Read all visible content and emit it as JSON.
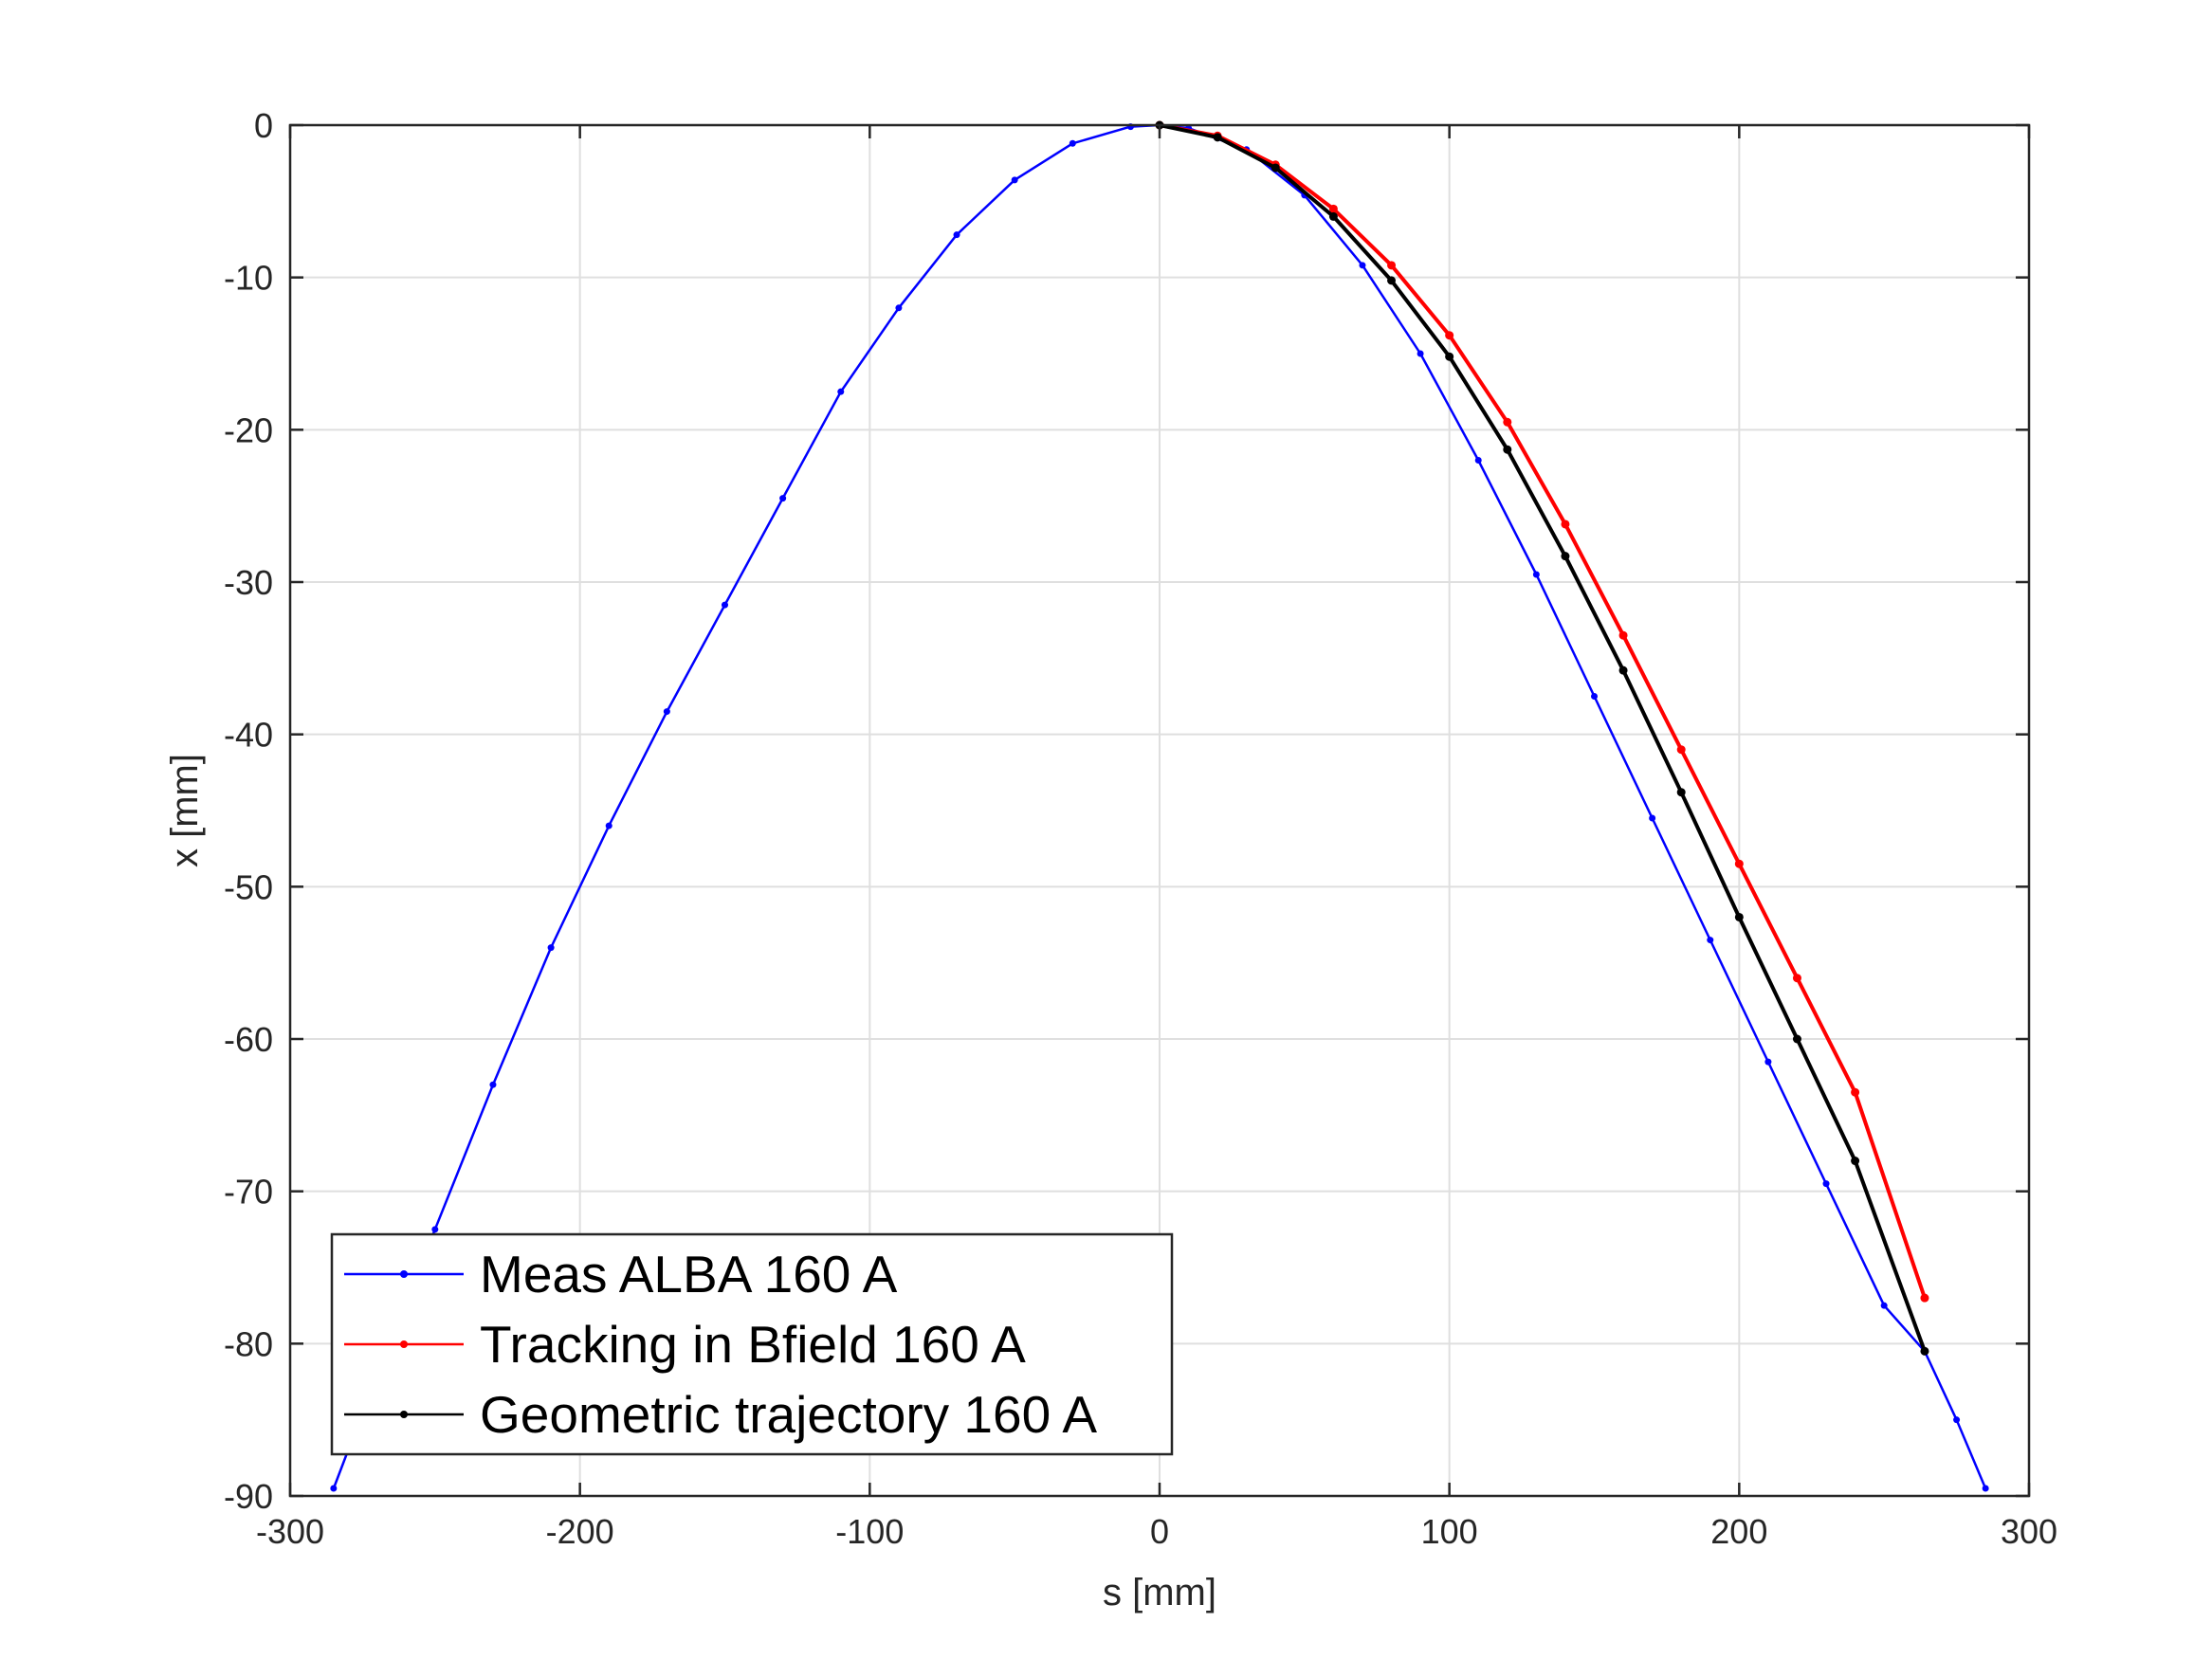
{
  "chart_data": {
    "type": "line",
    "title": "",
    "xlabel": "s [mm]",
    "ylabel": "x [mm]",
    "xlim": [
      -300,
      300
    ],
    "ylim": [
      -90,
      0
    ],
    "xticks": [
      -300,
      -200,
      -100,
      0,
      100,
      200,
      300
    ],
    "yticks": [
      -90,
      -80,
      -70,
      -60,
      -50,
      -40,
      -30,
      -20,
      -10,
      0
    ],
    "grid": true,
    "legend_position": "bottom-left",
    "series": [
      {
        "name": "Meas ALBA 160 A",
        "color": "#0000ff",
        "marker": "dot",
        "x": [
          -285,
          -270,
          -250,
          -230,
          -210,
          -190,
          -170,
          -150,
          -130,
          -110,
          -90,
          -70,
          -50,
          -30,
          -10,
          0,
          10,
          30,
          50,
          70,
          90,
          110,
          130,
          150,
          170,
          190,
          210,
          230,
          250,
          264,
          275,
          285
        ],
        "y": [
          -89.5,
          -82.0,
          -72.5,
          -63.0,
          -54.0,
          -46.0,
          -38.5,
          -31.5,
          -24.5,
          -17.5,
          -12.0,
          -7.2,
          -3.6,
          -1.2,
          -0.1,
          0.0,
          -0.2,
          -1.6,
          -4.6,
          -9.2,
          -15.0,
          -22.0,
          -29.5,
          -37.5,
          -45.5,
          -53.5,
          -61.5,
          -69.5,
          -77.5,
          -80.5,
          -85.0,
          -89.5
        ]
      },
      {
        "name": "Tracking in Bfield 160 A",
        "color": "#ff0000",
        "marker": "dot",
        "x": [
          0,
          20,
          40,
          60,
          80,
          100,
          120,
          140,
          160,
          180,
          200,
          220,
          240,
          264
        ],
        "y": [
          0.0,
          -0.7,
          -2.6,
          -5.5,
          -9.2,
          -13.8,
          -19.5,
          -26.2,
          -33.5,
          -41.0,
          -48.5,
          -56.0,
          -63.5,
          -77.0
        ]
      },
      {
        "name": "Geometric trajectory 160 A",
        "color": "#000000",
        "marker": "dot",
        "x": [
          0,
          20,
          40,
          60,
          80,
          100,
          120,
          140,
          160,
          180,
          200,
          220,
          240,
          264
        ],
        "y": [
          0.0,
          -0.8,
          -2.8,
          -6.0,
          -10.2,
          -15.2,
          -21.3,
          -28.3,
          -35.8,
          -43.8,
          -52.0,
          -60.0,
          -68.0,
          -80.5
        ]
      }
    ]
  }
}
